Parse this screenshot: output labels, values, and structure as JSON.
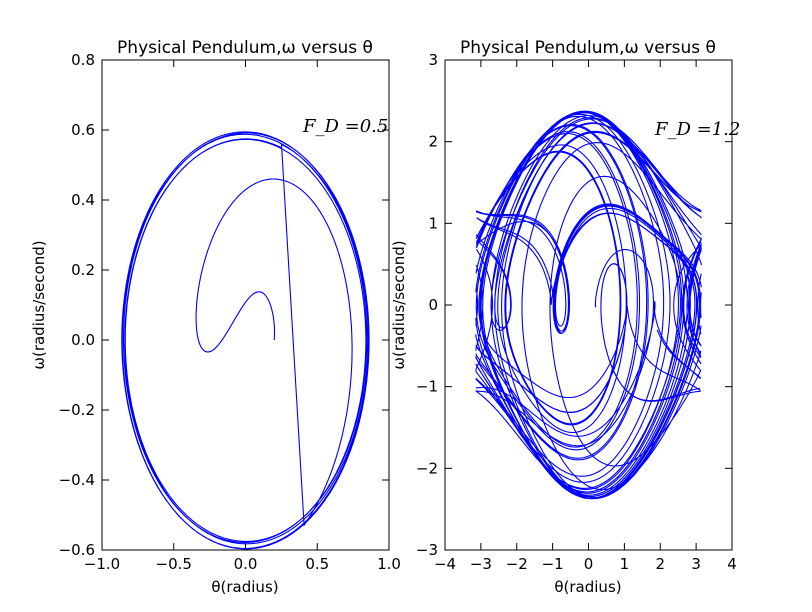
{
  "chart_data": [
    {
      "type": "line",
      "title": "Physical Pendulum,ω versus θ",
      "xlabel": "θ(radius)",
      "ylabel": "ω(radius/second)",
      "xlim": [
        -1.0,
        1.0
      ],
      "ylim": [
        -0.6,
        0.8
      ],
      "xticks": [
        -1.0,
        -0.5,
        0.0,
        0.5,
        1.0
      ],
      "xtick_labels": [
        "−1.0",
        "−0.5",
        "0.0",
        "0.5",
        "1.0"
      ],
      "yticks": [
        -0.6,
        -0.4,
        -0.2,
        0.0,
        0.2,
        0.4,
        0.6,
        0.8
      ],
      "ytick_labels": [
        "−0.6",
        "−0.4",
        "−0.2",
        "0.0",
        "0.2",
        "0.4",
        "0.6",
        "0.8"
      ],
      "annotation": "F_D =0.5",
      "grid": false,
      "color": "#0000ff",
      "series": [
        {
          "trajectory": "spiral-to-limit-cycle",
          "start": [
            0.2,
            0.0
          ],
          "transient_peak_omega": 0.23,
          "first_loop_top_omega": 0.615,
          "first_loop_theta_extent": [
            -0.84,
            0.87
          ],
          "steady_amplitude_theta": 0.85,
          "steady_amplitude_omega": 0.585
        }
      ]
    },
    {
      "type": "line",
      "title": "Physical Pendulum,ω versus θ",
      "xlabel": "θ(radius)",
      "ylabel": "ω(radius/second)",
      "xlim": [
        -4,
        4
      ],
      "ylim": [
        -3,
        3
      ],
      "xticks": [
        -4,
        -3,
        -2,
        -1,
        0,
        1,
        2,
        3,
        4
      ],
      "xtick_labels": [
        "−4",
        "−3",
        "−2",
        "−1",
        "0",
        "1",
        "2",
        "3",
        "4"
      ],
      "yticks": [
        -3,
        -2,
        -1,
        0,
        1,
        2,
        3
      ],
      "ytick_labels": [
        "−3",
        "−2",
        "−1",
        "0",
        "1",
        "2",
        "3"
      ],
      "annotation": "F_D =1.2",
      "grid": false,
      "color": "#0000ff",
      "series": [
        {
          "trajectory": "chaotic-wrapped-to-[-pi,pi]",
          "theta_range": [
            -3.14159,
            3.14159
          ],
          "omega_range": [
            -2.37,
            2.35
          ]
        }
      ]
    }
  ]
}
